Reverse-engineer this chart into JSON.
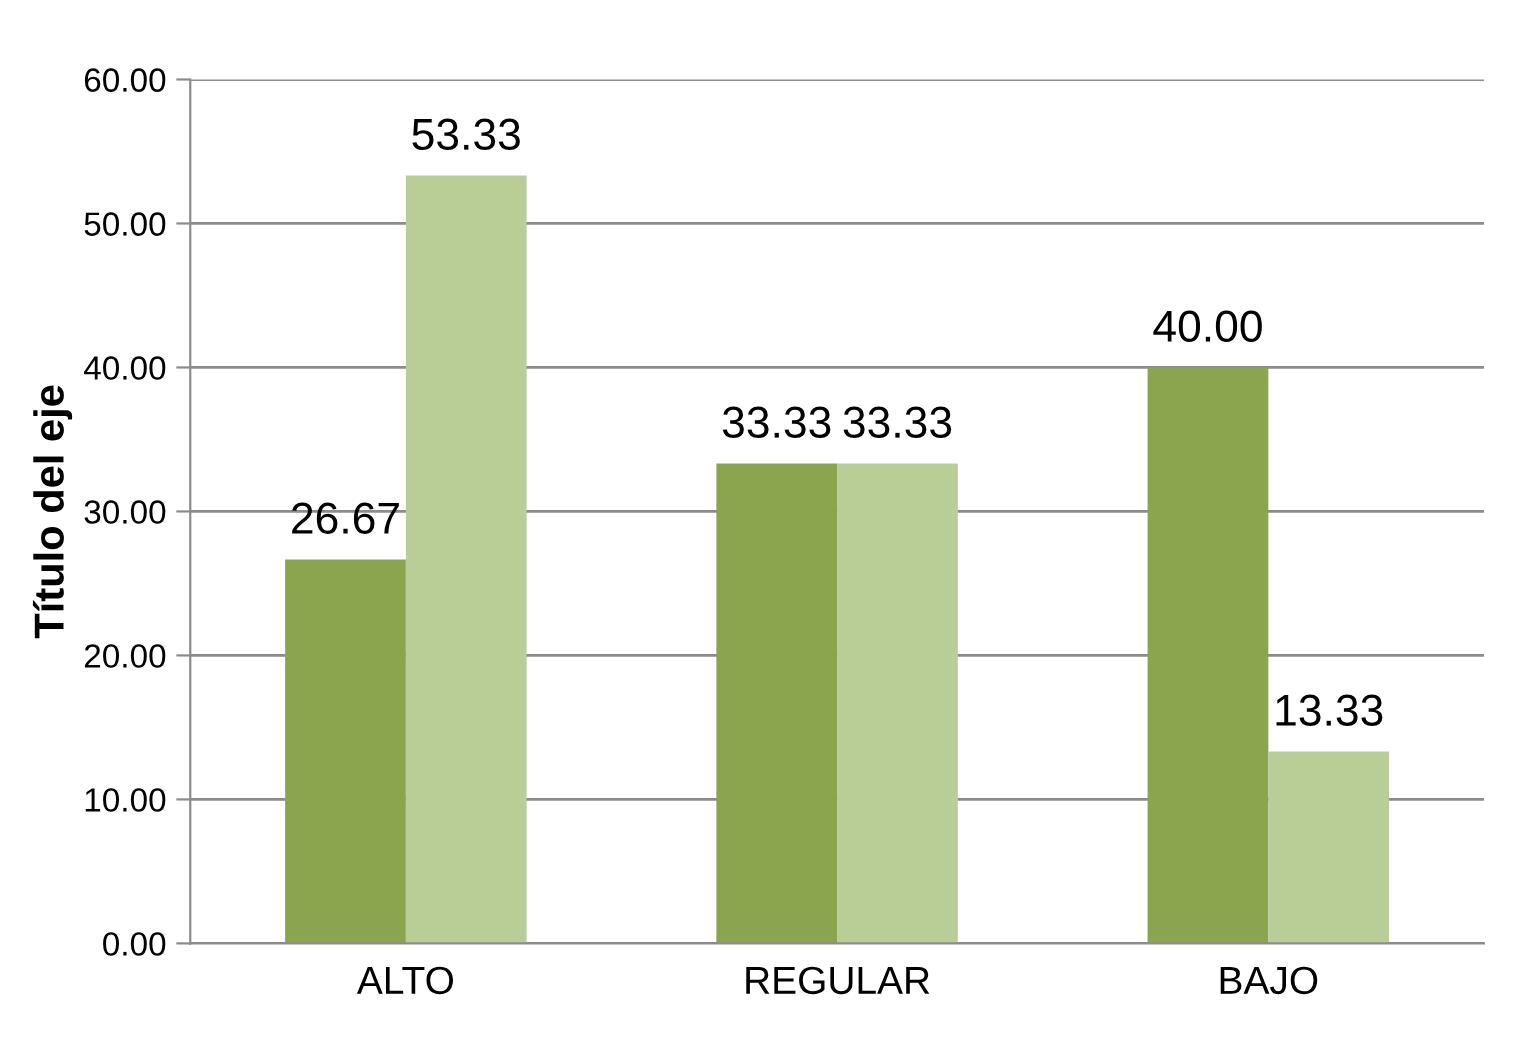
{
  "chart_data": {
    "type": "bar",
    "ylabel": "Título del eje",
    "categories": [
      "ALTO",
      "REGULAR",
      "BAJO"
    ],
    "series": [
      {
        "color": "#8aa54e",
        "values": [
          26.67,
          33.33,
          40.0
        ],
        "value_labels": [
          "26.67",
          "33.33",
          "40.00"
        ]
      },
      {
        "color": "#b9cd96",
        "values": [
          53.33,
          33.33,
          13.33
        ],
        "value_labels": [
          "53.33",
          "33.33",
          "13.33"
        ]
      }
    ],
    "ylim": [
      0,
      60
    ],
    "yticks": [
      {
        "value": 0,
        "label": "0.00"
      },
      {
        "value": 10,
        "label": "10.00"
      },
      {
        "value": 20,
        "label": "20.00"
      },
      {
        "value": 30,
        "label": "30.00"
      },
      {
        "value": 40,
        "label": "40.00"
      },
      {
        "value": 50,
        "label": "50.00"
      },
      {
        "value": 60,
        "label": "60.00"
      }
    ],
    "grid": "y"
  }
}
